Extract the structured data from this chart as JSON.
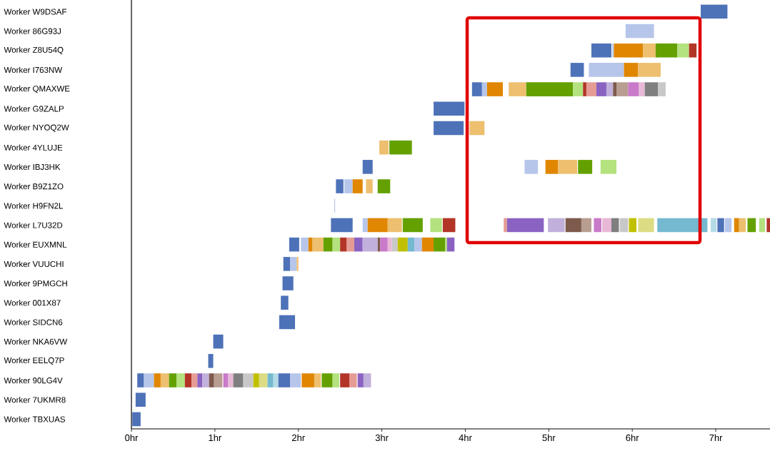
{
  "chart_data": {
    "type": "bar",
    "orientation": "horizontal",
    "categories": [
      "Worker W9DSAF",
      "Worker 86G93J",
      "Worker Z8U54Q",
      "Worker I763NW",
      "Worker QMAXWE",
      "Worker G9ZALP",
      "Worker NYOQ2W",
      "Worker 4YLUJE",
      "Worker IBJ3HK",
      "Worker B9Z1ZO",
      "Worker H9FN2L",
      "Worker L7U32D",
      "Worker EUXMNL",
      "Worker VUUCHI",
      "Worker 9PMGCH",
      "Worker 001X87",
      "Worker SIDCN6",
      "Worker NKA6VW",
      "Worker EELQ7P",
      "Worker 90LG4V",
      "Worker 7UKMR8",
      "Worker TBXUAS"
    ],
    "xlim": [
      0,
      7.65
    ],
    "xticks": [
      {
        "value": 0,
        "label": "0hr"
      },
      {
        "value": 1,
        "label": "1hr"
      },
      {
        "value": 2,
        "label": "2hr"
      },
      {
        "value": 3,
        "label": "3hr"
      },
      {
        "value": 4,
        "label": "4hr"
      },
      {
        "value": 5,
        "label": "5hr"
      },
      {
        "value": 6,
        "label": "6hr"
      },
      {
        "value": 7,
        "label": "7hr"
      }
    ],
    "series": [
      {
        "color": "#4e72b8",
        "values": [
          0.32,
          null,
          0.24,
          0.16,
          0.12,
          0.37,
          0.36,
          null,
          0.12,
          0.09,
          null,
          0.26,
          0.12,
          0.08,
          0.13,
          0.09,
          0.19,
          0.12,
          0.06,
          0.08,
          0.12,
          0.1
        ],
        "base": [
          6.82,
          null,
          5.51,
          5.26,
          4.08,
          3.62,
          3.62,
          null,
          2.77,
          2.45,
          null,
          2.39,
          1.89,
          1.82,
          1.81,
          1.79,
          1.77,
          0.98,
          0.92,
          0.07,
          0.05,
          0.01
        ]
      },
      {
        "color": "#b6c6ea",
        "values": [
          null,
          0.34,
          0.02,
          0.42,
          0.06,
          null,
          null,
          null,
          0.16,
          0.1,
          0.01,
          0.06,
          0.09,
          0.08,
          null,
          null,
          null,
          null,
          null,
          0.12,
          null,
          null
        ],
        "base": [
          null,
          5.92,
          5.76,
          5.48,
          4.2,
          null,
          null,
          null,
          4.71,
          2.55,
          2.43,
          2.77,
          2.03,
          1.9,
          null,
          null,
          null,
          null,
          null,
          0.15,
          null,
          null
        ]
      },
      {
        "color": "#e08600",
        "values": [
          null,
          null,
          0.35,
          0.17,
          0.19,
          null,
          null,
          null,
          0.15,
          0.12,
          null,
          0.24,
          0.05,
          null,
          null,
          null,
          null,
          null,
          null,
          0.08,
          null,
          null
        ],
        "base": [
          null,
          null,
          5.78,
          5.9,
          4.26,
          null,
          null,
          null,
          4.96,
          2.65,
          null,
          2.83,
          2.12,
          null,
          null,
          null,
          null,
          null,
          null,
          0.27,
          null,
          null
        ]
      },
      {
        "color": "#edbf6e",
        "values": [
          null,
          null,
          0.15,
          0.27,
          0.21,
          null,
          0.18,
          0.11,
          0.23,
          0.08,
          null,
          0.17,
          0.13,
          0.02,
          null,
          null,
          null,
          null,
          null,
          0.1,
          null,
          null
        ],
        "base": [
          null,
          null,
          6.13,
          6.07,
          4.52,
          null,
          4.05,
          2.97,
          5.11,
          2.81,
          null,
          3.07,
          2.17,
          1.98,
          null,
          null,
          null,
          null,
          null,
          0.35,
          null,
          null
        ]
      },
      {
        "color": "#64a100",
        "values": [
          null,
          null,
          0.26,
          null,
          0.56,
          null,
          null,
          0.27,
          0.17,
          0.15,
          null,
          0.24,
          0.11,
          null,
          null,
          null,
          null,
          null,
          null,
          0.09,
          null,
          null
        ],
        "base": [
          null,
          null,
          6.28,
          null,
          4.73,
          null,
          null,
          3.09,
          5.35,
          2.95,
          null,
          3.25,
          2.3,
          null,
          null,
          null,
          null,
          null,
          null,
          0.45,
          null,
          null
        ]
      },
      {
        "color": "#b3e27e",
        "values": [
          null,
          null,
          0.14,
          null,
          0.12,
          null,
          null,
          null,
          0.19,
          null,
          null,
          0.14,
          0.09,
          null,
          null,
          null,
          null,
          null,
          null,
          0.1,
          null,
          null
        ],
        "base": [
          null,
          null,
          6.54,
          null,
          5.29,
          null,
          null,
          null,
          5.62,
          null,
          null,
          3.58,
          2.41,
          null,
          null,
          null,
          null,
          null,
          null,
          0.54,
          null,
          null
        ]
      },
      {
        "color": "#b23528",
        "values": [
          null,
          null,
          0.09,
          null,
          0.04,
          null,
          null,
          null,
          null,
          null,
          null,
          0.15,
          0.08,
          null,
          null,
          null,
          null,
          null,
          null,
          0.08,
          null,
          null
        ],
        "base": [
          null,
          null,
          6.68,
          null,
          5.41,
          null,
          null,
          null,
          null,
          null,
          null,
          3.73,
          2.5,
          null,
          null,
          null,
          null,
          null,
          null,
          0.64,
          null,
          null
        ]
      },
      {
        "color": "#e59c95",
        "values": [
          null,
          null,
          null,
          null,
          0.12,
          null,
          null,
          null,
          null,
          null,
          null,
          0.04,
          0.09,
          null,
          null,
          null,
          null,
          null,
          null,
          0.07,
          null,
          null
        ],
        "base": [
          null,
          null,
          null,
          null,
          5.45,
          null,
          null,
          null,
          null,
          null,
          null,
          4.46,
          2.58,
          null,
          null,
          null,
          null,
          null,
          null,
          0.72,
          null,
          null
        ]
      },
      {
        "color": "#8a63c2",
        "values": [
          null,
          null,
          null,
          null,
          0.12,
          null,
          null,
          null,
          null,
          null,
          null,
          0.44,
          0.1,
          null,
          null,
          null,
          null,
          null,
          null,
          0.06,
          null,
          null
        ],
        "base": [
          null,
          null,
          null,
          null,
          5.57,
          null,
          null,
          null,
          null,
          null,
          null,
          4.5,
          2.67,
          null,
          null,
          null,
          null,
          null,
          null,
          0.79,
          null,
          null
        ]
      },
      {
        "color": "#c1b0db",
        "values": [
          null,
          null,
          null,
          null,
          0.08,
          null,
          null,
          null,
          null,
          null,
          null,
          0.2,
          0.18,
          null,
          null,
          null,
          null,
          null,
          null,
          0.08,
          null,
          null
        ],
        "base": [
          null,
          null,
          null,
          null,
          5.69,
          null,
          null,
          null,
          null,
          null,
          null,
          4.99,
          2.77,
          null,
          null,
          null,
          null,
          null,
          null,
          0.85,
          null,
          null
        ]
      },
      {
        "color": "#7d5a4c",
        "values": [
          null,
          null,
          null,
          null,
          0.04,
          null,
          null,
          null,
          null,
          null,
          null,
          0.19,
          0.03,
          null,
          null,
          null,
          null,
          null,
          null,
          0.06,
          null,
          null
        ],
        "base": [
          null,
          null,
          null,
          null,
          5.77,
          null,
          null,
          null,
          null,
          null,
          null,
          5.2,
          2.95,
          null,
          null,
          null,
          null,
          null,
          null,
          0.93,
          null,
          null
        ]
      },
      {
        "color": "#b89d91",
        "values": [
          null,
          null,
          null,
          null,
          0.14,
          null,
          null,
          null,
          null,
          null,
          null,
          0.12,
          null,
          null,
          null,
          null,
          null,
          null,
          null,
          0.1,
          null,
          null
        ],
        "base": [
          null,
          null,
          null,
          null,
          5.81,
          null,
          null,
          null,
          null,
          null,
          null,
          5.39,
          null,
          null,
          null,
          null,
          null,
          null,
          null,
          0.99,
          null,
          null
        ]
      },
      {
        "color": "#c97ac9",
        "values": [
          null,
          null,
          null,
          null,
          0.13,
          null,
          null,
          null,
          null,
          null,
          null,
          0.09,
          0.09,
          null,
          null,
          null,
          null,
          null,
          null,
          0.06,
          null,
          null
        ],
        "base": [
          null,
          null,
          null,
          null,
          5.95,
          null,
          null,
          null,
          null,
          null,
          null,
          5.54,
          2.98,
          null,
          null,
          null,
          null,
          null,
          null,
          1.1,
          null,
          null
        ]
      },
      {
        "color": "#e8b8d6",
        "values": [
          null,
          null,
          null,
          null,
          0.07,
          null,
          null,
          null,
          null,
          null,
          null,
          0.11,
          0.05,
          null,
          null,
          null,
          null,
          null,
          null,
          0.06,
          null,
          null
        ],
        "base": [
          null,
          null,
          null,
          null,
          6.08,
          null,
          null,
          null,
          null,
          null,
          null,
          5.64,
          3.07,
          null,
          null,
          null,
          null,
          null,
          null,
          1.16,
          null,
          null
        ]
      },
      {
        "color": "#7f7f7f",
        "values": [
          null,
          null,
          null,
          null,
          0.16,
          null,
          null,
          null,
          null,
          null,
          null,
          0.09,
          null,
          null,
          null,
          null,
          null,
          null,
          null,
          0.12,
          null,
          null
        ],
        "base": [
          null,
          null,
          null,
          null,
          6.15,
          null,
          null,
          null,
          null,
          null,
          null,
          5.75,
          null,
          null,
          null,
          null,
          null,
          null,
          null,
          1.22,
          null,
          null
        ]
      },
      {
        "color": "#c8c8c8",
        "values": [
          null,
          null,
          null,
          null,
          0.09,
          null,
          null,
          null,
          null,
          null,
          null,
          0.1,
          0.07,
          null,
          null,
          null,
          null,
          null,
          null,
          0.12,
          null,
          null
        ],
        "base": [
          null,
          null,
          null,
          null,
          6.31,
          null,
          null,
          null,
          null,
          null,
          null,
          5.85,
          3.12,
          null,
          null,
          null,
          null,
          null,
          null,
          1.34,
          null,
          null
        ]
      },
      {
        "color": "#c0c000",
        "values": [
          null,
          null,
          null,
          null,
          null,
          null,
          null,
          null,
          null,
          null,
          null,
          0.09,
          0.12,
          null,
          null,
          null,
          null,
          null,
          null,
          0.07,
          null,
          null
        ],
        "base": [
          null,
          null,
          null,
          null,
          null,
          null,
          null,
          null,
          null,
          null,
          null,
          5.96,
          3.19,
          null,
          null,
          null,
          null,
          null,
          null,
          1.46,
          null,
          null
        ]
      },
      {
        "color": "#dcdc85",
        "values": [
          null,
          null,
          null,
          null,
          null,
          null,
          null,
          null,
          null,
          null,
          null,
          0.19,
          null,
          null,
          null,
          null,
          null,
          null,
          null,
          0.1,
          null,
          null
        ],
        "base": [
          null,
          null,
          null,
          null,
          null,
          null,
          null,
          null,
          null,
          null,
          null,
          6.07,
          null,
          null,
          null,
          null,
          null,
          null,
          null,
          1.53,
          null,
          null
        ]
      },
      {
        "color": "#74b9d0",
        "values": [
          null,
          null,
          null,
          null,
          null,
          null,
          null,
          null,
          null,
          null,
          null,
          0.6,
          0.08,
          null,
          null,
          null,
          null,
          null,
          null,
          0.07,
          null,
          null
        ],
        "base": [
          null,
          null,
          null,
          null,
          null,
          null,
          null,
          null,
          null,
          null,
          null,
          6.3,
          3.31,
          null,
          null,
          null,
          null,
          null,
          null,
          1.63,
          null,
          null
        ]
      },
      {
        "color": "#b5dbe6",
        "values": [
          null,
          null,
          null,
          null,
          null,
          null,
          null,
          null,
          null,
          null,
          null,
          0.07,
          null,
          null,
          null,
          null,
          null,
          null,
          null,
          0.06,
          null,
          null
        ],
        "base": [
          null,
          null,
          null,
          null,
          null,
          null,
          null,
          null,
          null,
          null,
          null,
          6.94,
          null,
          null,
          null,
          null,
          null,
          null,
          null,
          1.7,
          null,
          null
        ]
      },
      {
        "color": "#4e72b8",
        "values": [
          null,
          null,
          null,
          null,
          null,
          null,
          null,
          null,
          null,
          null,
          null,
          0.08,
          null,
          null,
          null,
          null,
          null,
          null,
          null,
          0.14,
          null,
          null
        ],
        "base": [
          null,
          null,
          null,
          null,
          null,
          null,
          null,
          null,
          null,
          null,
          null,
          7.02,
          null,
          null,
          null,
          null,
          null,
          null,
          null,
          1.76,
          null,
          null
        ]
      },
      {
        "color": "#b6c6ea",
        "values": [
          null,
          null,
          null,
          null,
          null,
          null,
          null,
          null,
          null,
          null,
          null,
          0.08,
          0.09,
          null,
          null,
          null,
          null,
          null,
          null,
          0.13,
          null,
          null
        ],
        "base": [
          null,
          null,
          null,
          null,
          null,
          null,
          null,
          null,
          null,
          null,
          null,
          7.11,
          3.39,
          null,
          null,
          null,
          null,
          null,
          null,
          1.9,
          null,
          null
        ]
      },
      {
        "color": "#e08600",
        "values": [
          null,
          null,
          null,
          null,
          null,
          null,
          null,
          null,
          null,
          null,
          null,
          0.06,
          0.14,
          null,
          null,
          null,
          null,
          null,
          null,
          0.15,
          null,
          null
        ],
        "base": [
          null,
          null,
          null,
          null,
          null,
          null,
          null,
          null,
          null,
          null,
          null,
          7.22,
          3.48,
          null,
          null,
          null,
          null,
          null,
          null,
          2.04,
          null,
          null
        ]
      },
      {
        "color": "#edbf6e",
        "values": [
          null,
          null,
          null,
          null,
          null,
          null,
          null,
          null,
          null,
          null,
          null,
          0.08,
          null,
          null,
          null,
          null,
          null,
          null,
          null,
          0.08,
          null,
          null
        ],
        "base": [
          null,
          null,
          null,
          null,
          null,
          null,
          null,
          null,
          null,
          null,
          null,
          7.28,
          null,
          null,
          null,
          null,
          null,
          null,
          null,
          2.19,
          null,
          null
        ]
      },
      {
        "color": "#64a100",
        "values": [
          null,
          null,
          null,
          null,
          null,
          null,
          null,
          null,
          null,
          null,
          null,
          0.1,
          0.14,
          null,
          null,
          null,
          null,
          null,
          null,
          0.13,
          null,
          null
        ],
        "base": [
          null,
          null,
          null,
          null,
          null,
          null,
          null,
          null,
          null,
          null,
          null,
          7.38,
          3.62,
          null,
          null,
          null,
          null,
          null,
          null,
          2.28,
          null,
          null
        ]
      },
      {
        "color": "#b3e27e",
        "values": [
          null,
          null,
          null,
          null,
          null,
          null,
          null,
          null,
          null,
          null,
          null,
          0.07,
          0.02,
          null,
          null,
          null,
          null,
          null,
          null,
          0.08,
          null,
          null
        ],
        "base": [
          null,
          null,
          null,
          null,
          null,
          null,
          null,
          null,
          null,
          null,
          null,
          7.52,
          3.76,
          null,
          null,
          null,
          null,
          null,
          null,
          2.41,
          null,
          null
        ]
      },
      {
        "color": "#b23528",
        "values": [
          null,
          null,
          null,
          null,
          null,
          null,
          null,
          null,
          null,
          null,
          null,
          0.04,
          null,
          null,
          null,
          null,
          null,
          null,
          null,
          0.11,
          null,
          null
        ],
        "base": [
          null,
          null,
          null,
          null,
          null,
          null,
          null,
          null,
          null,
          null,
          null,
          7.61,
          null,
          null,
          null,
          null,
          null,
          null,
          null,
          2.5,
          null,
          null
        ]
      },
      {
        "color": "#e59c95",
        "values": [
          null,
          null,
          null,
          null,
          null,
          null,
          null,
          null,
          null,
          null,
          null,
          null,
          null,
          null,
          null,
          null,
          null,
          null,
          null,
          0.09,
          null,
          null
        ],
        "base": [
          null,
          null,
          null,
          null,
          null,
          null,
          null,
          null,
          null,
          null,
          null,
          null,
          null,
          null,
          null,
          null,
          null,
          null,
          null,
          2.61,
          null,
          null
        ]
      },
      {
        "color": "#8a63c2",
        "values": [
          null,
          null,
          null,
          null,
          null,
          null,
          null,
          null,
          null,
          null,
          null,
          null,
          0.09,
          null,
          null,
          null,
          null,
          null,
          null,
          0.07,
          null,
          null
        ],
        "base": [
          null,
          null,
          null,
          null,
          null,
          null,
          null,
          null,
          null,
          null,
          null,
          null,
          3.78,
          null,
          null,
          null,
          null,
          null,
          null,
          2.71,
          null,
          null
        ]
      },
      {
        "color": "#c1b0db",
        "values": [
          null,
          null,
          null,
          null,
          null,
          null,
          null,
          null,
          null,
          null,
          null,
          null,
          null,
          null,
          null,
          null,
          null,
          null,
          null,
          0.09,
          null,
          null
        ],
        "base": [
          null,
          null,
          null,
          null,
          null,
          null,
          null,
          null,
          null,
          null,
          null,
          null,
          null,
          null,
          null,
          null,
          null,
          null,
          null,
          2.78,
          null,
          null
        ]
      }
    ]
  }
}
